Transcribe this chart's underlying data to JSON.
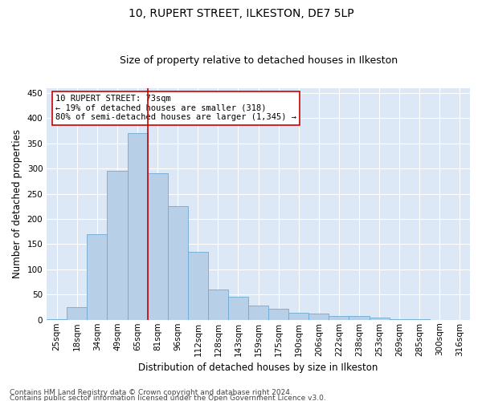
{
  "title1": "10, RUPERT STREET, ILKESTON, DE7 5LP",
  "title2": "Size of property relative to detached houses in Ilkeston",
  "xlabel": "Distribution of detached houses by size in Ilkeston",
  "ylabel": "Number of detached properties",
  "categories": [
    "25sqm",
    "18sqm",
    "34sqm",
    "49sqm",
    "65sqm",
    "81sqm",
    "96sqm",
    "112sqm",
    "128sqm",
    "143sqm",
    "159sqm",
    "175sqm",
    "190sqm",
    "206sqm",
    "222sqm",
    "238sqm",
    "253sqm",
    "269sqm",
    "285sqm",
    "300sqm",
    "316sqm"
  ],
  "values": [
    2,
    25,
    170,
    295,
    370,
    290,
    225,
    135,
    60,
    45,
    28,
    22,
    14,
    13,
    8,
    8,
    4,
    2,
    1,
    0,
    0
  ],
  "bar_color": "#b8cfe8",
  "bar_edge_color": "#6daad4",
  "bg_color": "#dce8f5",
  "grid_color": "#ffffff",
  "vline_color": "#cc0000",
  "annotation_text": "10 RUPERT STREET: 73sqm\n← 19% of detached houses are smaller (318)\n80% of semi-detached houses are larger (1,345) →",
  "annotation_box_color": "#ffffff",
  "annotation_box_edge": "#cc0000",
  "footer1": "Contains HM Land Registry data © Crown copyright and database right 2024.",
  "footer2": "Contains public sector information licensed under the Open Government Licence v3.0.",
  "ylim": [
    0,
    460
  ],
  "title1_fontsize": 10,
  "title2_fontsize": 9,
  "xlabel_fontsize": 8.5,
  "ylabel_fontsize": 8.5,
  "tick_fontsize": 7.5,
  "annotation_fontsize": 7.5,
  "footer_fontsize": 6.5
}
